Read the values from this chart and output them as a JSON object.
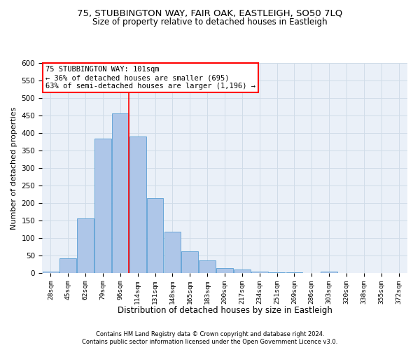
{
  "title1": "75, STUBBINGTON WAY, FAIR OAK, EASTLEIGH, SO50 7LQ",
  "title2": "Size of property relative to detached houses in Eastleigh",
  "xlabel": "Distribution of detached houses by size in Eastleigh",
  "ylabel": "Number of detached properties",
  "footer1": "Contains HM Land Registry data © Crown copyright and database right 2024.",
  "footer2": "Contains public sector information licensed under the Open Government Licence v3.0.",
  "annotation_line1": "75 STUBBINGTON WAY: 101sqm",
  "annotation_line2": "← 36% of detached houses are smaller (695)",
  "annotation_line3": "63% of semi-detached houses are larger (1,196) →",
  "bar_labels": [
    "28sqm",
    "45sqm",
    "62sqm",
    "79sqm",
    "96sqm",
    "114sqm",
    "131sqm",
    "148sqm",
    "165sqm",
    "183sqm",
    "200sqm",
    "217sqm",
    "234sqm",
    "251sqm",
    "269sqm",
    "286sqm",
    "303sqm",
    "320sqm",
    "338sqm",
    "355sqm",
    "372sqm"
  ],
  "bar_values": [
    4,
    43,
    157,
    385,
    457,
    390,
    215,
    119,
    63,
    36,
    15,
    10,
    5,
    3,
    2,
    0,
    4,
    0,
    1,
    0,
    1
  ],
  "bar_color": "#aec6e8",
  "bar_edge_color": "#5a9fd4",
  "vline_color": "red",
  "annotation_box_color": "white",
  "annotation_box_edge": "red",
  "grid_color": "#d0dce8",
  "bg_color": "#eaf0f8",
  "ylim": [
    0,
    600
  ],
  "yticks": [
    0,
    50,
    100,
    150,
    200,
    250,
    300,
    350,
    400,
    450,
    500,
    550,
    600
  ]
}
